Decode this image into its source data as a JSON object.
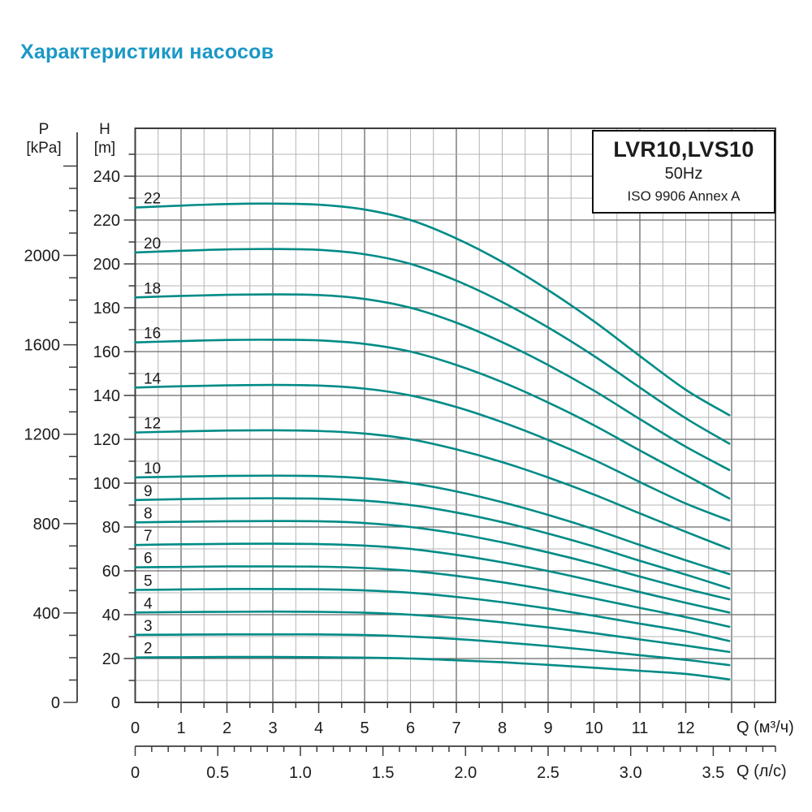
{
  "page": {
    "title": "Характеристики насосов"
  },
  "info_box": {
    "model": "LVR10,LVS10",
    "frequency": "50Hz",
    "standard": "ISO 9906 Annex A"
  },
  "colors": {
    "title": "#1b98c6",
    "curve": "#008b86",
    "grid_minor": "#b4b4b4",
    "grid_major": "#6a6a6a",
    "axis": "#3c3c3c",
    "text": "#1c1c1c"
  },
  "axes": {
    "pressure": {
      "name": "P",
      "unit": "[kPa]",
      "labeled_ticks": [
        0,
        400,
        800,
        1200,
        1600,
        2000
      ],
      "minor_step": 100,
      "max_tick": 2400
    },
    "head": {
      "name": "H",
      "unit": "[m]",
      "labeled_ticks": [
        0,
        20,
        40,
        60,
        80,
        100,
        120,
        140,
        160,
        180,
        200,
        220,
        240
      ],
      "minor_step": 10,
      "max_tick": 250
    },
    "flow_m3h": {
      "unit_label": "Q (м³/ч)",
      "labeled_ticks": [
        0,
        1,
        2,
        3,
        4,
        5,
        6,
        7,
        8,
        9,
        10,
        11,
        12
      ],
      "minor_step": 0.5,
      "max_tick": 13.5
    },
    "flow_ls": {
      "unit_label": "Q (л/с)",
      "labeled_ticks": [
        "0",
        "0.5",
        "1.0",
        "1.5",
        "2.0",
        "2.5",
        "3.0",
        "3.5"
      ],
      "minor_step": 0.1,
      "max_tick": 3.8
    }
  },
  "chart_data": {
    "type": "line",
    "title": "LVR10,LVS10 50Hz ISO 9906 Annex A",
    "xlabel": "Q (м³/ч)",
    "ylabel": "H [m]",
    "xlim": [
      0,
      14
    ],
    "ylim_head_m": [
      0,
      260
    ],
    "grid": true,
    "legend_position": "labels-on-curves",
    "x": [
      0,
      1,
      2,
      3,
      4,
      5,
      6,
      7,
      8,
      9,
      10,
      11,
      12,
      12.95
    ],
    "series": [
      {
        "name": "22",
        "values": [
          225.7,
          226.6,
          227.3,
          227.5,
          227.0,
          224.8,
          220.0,
          211.6,
          200.9,
          188.1,
          173.8,
          158.0,
          142.6,
          131.0
        ]
      },
      {
        "name": "20",
        "values": [
          205.2,
          206.0,
          206.6,
          206.8,
          206.4,
          204.4,
          200.0,
          192.4,
          182.6,
          171.0,
          158.0,
          143.6,
          129.6,
          118.0
        ]
      },
      {
        "name": "18",
        "values": [
          184.7,
          185.4,
          185.9,
          186.1,
          185.8,
          184.0,
          180.0,
          173.2,
          164.3,
          153.9,
          142.2,
          129.2,
          116.6,
          106.0
        ]
      },
      {
        "name": "16",
        "values": [
          164.2,
          164.8,
          165.3,
          165.4,
          165.1,
          163.5,
          160.0,
          153.9,
          146.1,
          136.8,
          126.4,
          114.9,
          103.7,
          93.0
        ]
      },
      {
        "name": "14",
        "values": [
          143.6,
          144.2,
          144.6,
          144.8,
          144.5,
          143.1,
          140.0,
          134.7,
          127.8,
          119.7,
          110.6,
          100.5,
          90.7,
          83.0
        ]
      },
      {
        "name": "12",
        "values": [
          123.1,
          123.6,
          124.0,
          124.1,
          123.8,
          122.6,
          120.0,
          115.4,
          109.6,
          102.6,
          94.8,
          86.2,
          77.8,
          70.0
        ]
      },
      {
        "name": "10",
        "values": [
          102.6,
          103.0,
          103.3,
          103.4,
          103.2,
          102.2,
          100.0,
          96.2,
          91.3,
          85.5,
          79.0,
          71.8,
          64.8,
          58.5
        ]
      },
      {
        "name": "9",
        "values": [
          92.3,
          92.7,
          93.0,
          93.1,
          92.9,
          92.0,
          90.0,
          86.6,
          82.2,
          77.0,
          71.1,
          64.6,
          58.3,
          52.0
        ]
      },
      {
        "name": "8",
        "values": [
          82.1,
          82.4,
          82.6,
          82.7,
          82.6,
          81.8,
          80.0,
          77.0,
          73.0,
          68.4,
          63.2,
          57.4,
          51.8,
          47.0
        ]
      },
      {
        "name": "7",
        "values": [
          71.8,
          72.1,
          72.3,
          72.4,
          72.2,
          71.5,
          70.0,
          67.3,
          63.9,
          59.9,
          55.3,
          50.3,
          45.4,
          41.0
        ]
      },
      {
        "name": "6",
        "values": [
          61.6,
          61.8,
          62.0,
          62.0,
          61.9,
          61.3,
          60.0,
          57.7,
          54.8,
          51.3,
          47.4,
          43.1,
          38.9,
          34.5
        ]
      },
      {
        "name": "5",
        "values": [
          51.3,
          51.5,
          51.7,
          51.7,
          51.6,
          51.1,
          50.0,
          48.1,
          45.7,
          42.8,
          39.5,
          35.9,
          32.4,
          28.0
        ]
      },
      {
        "name": "4",
        "values": [
          41.0,
          41.2,
          41.3,
          41.4,
          41.3,
          40.9,
          40.0,
          38.5,
          36.5,
          34.2,
          31.6,
          28.7,
          25.9,
          23.0
        ]
      },
      {
        "name": "3",
        "values": [
          30.8,
          30.9,
          31.0,
          31.0,
          31.0,
          30.7,
          30.0,
          28.9,
          27.4,
          25.7,
          23.7,
          21.5,
          19.4,
          17.0
        ]
      },
      {
        "name": "2",
        "values": [
          20.5,
          20.6,
          20.7,
          20.7,
          20.6,
          20.4,
          20.0,
          19.2,
          18.3,
          17.1,
          15.8,
          14.4,
          13.0,
          10.5
        ]
      }
    ]
  }
}
